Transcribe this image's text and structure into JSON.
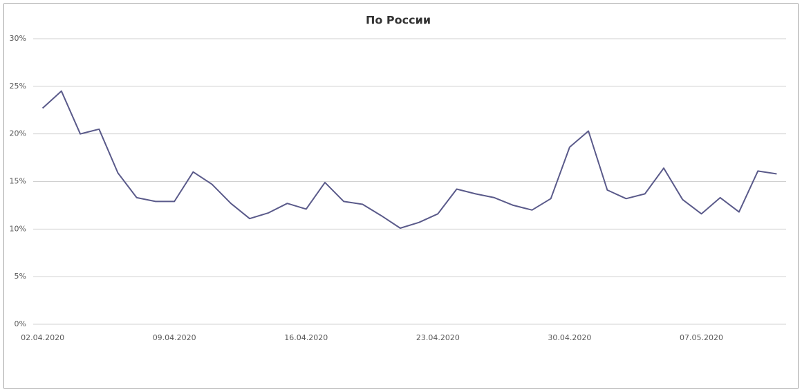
{
  "chart_data": {
    "type": "line",
    "title": "По России",
    "categories": [
      "02.04.2020",
      null,
      null,
      null,
      null,
      null,
      null,
      "09.04.2020",
      null,
      null,
      null,
      null,
      null,
      null,
      "16.04.2020",
      null,
      null,
      null,
      null,
      null,
      null,
      "23.04.2020",
      null,
      null,
      null,
      null,
      null,
      null,
      "30.04.2020",
      null,
      null,
      null,
      null,
      null,
      null,
      "07.05.2020",
      null,
      null,
      null,
      null
    ],
    "values": [
      22.7,
      24.5,
      20.0,
      20.5,
      15.9,
      13.3,
      12.9,
      12.9,
      16.0,
      14.7,
      12.7,
      11.1,
      11.7,
      12.7,
      12.1,
      14.9,
      12.9,
      12.6,
      11.4,
      10.1,
      10.7,
      11.6,
      14.2,
      13.7,
      13.3,
      12.5,
      12.0,
      13.2,
      18.6,
      20.3,
      14.1,
      13.2,
      13.7,
      16.4,
      13.1,
      11.6,
      13.3,
      11.8,
      16.1,
      15.8
    ],
    "color": "#5a5a8a",
    "ylim": [
      0,
      30
    ],
    "yticks": [
      {
        "value": 0,
        "label": "0%"
      },
      {
        "value": 5,
        "label": "5%"
      },
      {
        "value": 10,
        "label": "10%"
      },
      {
        "value": 15,
        "label": "15%"
      },
      {
        "value": 20,
        "label": "20%"
      },
      {
        "value": 25,
        "label": "25%"
      },
      {
        "value": 30,
        "label": "30%"
      }
    ],
    "grid": true
  }
}
